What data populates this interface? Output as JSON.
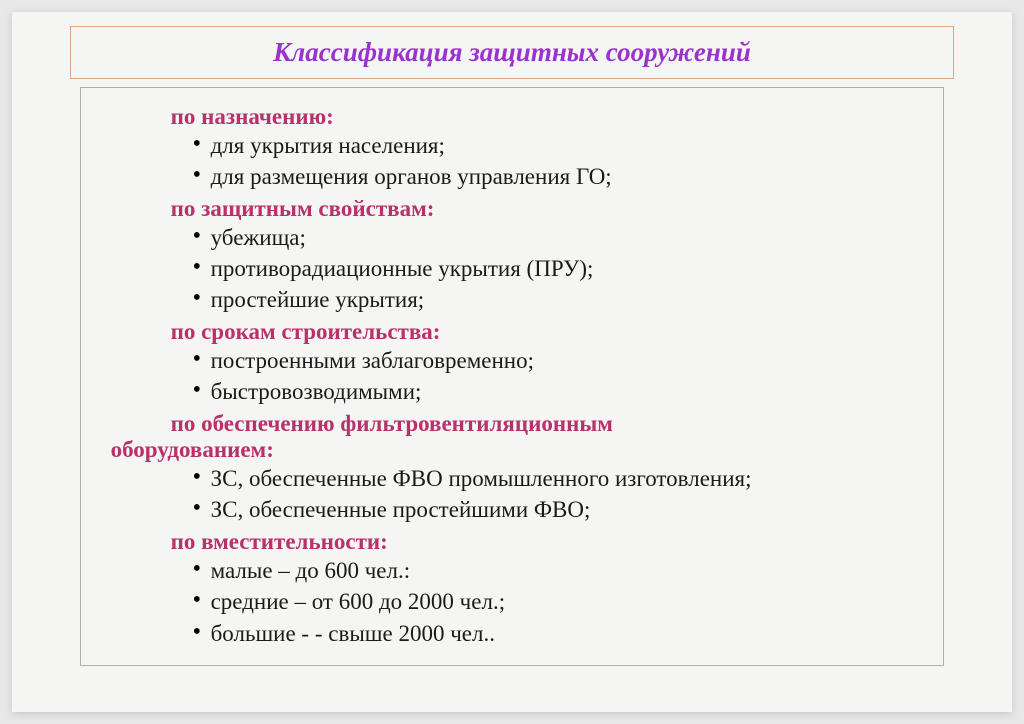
{
  "slide": {
    "background_color": "#f5f5f3",
    "page_background": "#e8e8e8",
    "title": {
      "text": "Классификация защитных сооружений",
      "color": "#9933cc",
      "border_color": "#d9a88a",
      "font_size": 27,
      "font_weight": "bold",
      "font_style": "italic"
    },
    "content": {
      "border_color": "#b0b0b0",
      "header_color": "#b8316a",
      "item_color": "#1a1a1a",
      "font_size": 23,
      "categories": [
        {
          "header": "по назначению:",
          "items": [
            "для укрытия населения;",
            "для размещения органов управления ГО;"
          ]
        },
        {
          "header": "по защитным свойствам:",
          "items": [
            "убежища;",
            "противорадиационные укрытия (ПРУ);",
            "простейшие укрытия;"
          ]
        },
        {
          "header": "по срокам строительства:",
          "items": [
            " построенными заблаговременно;",
            " быстровозводимыми;"
          ]
        },
        {
          "header": "по обеспечению фильтровентиляционным",
          "header_cont": "оборудованием:",
          "items": [
            "ЗС, обеспеченные ФВО промышленного изготовления;",
            "ЗС, обеспеченные простейшими ФВО;"
          ]
        },
        {
          "header": "по вместительности:",
          "items": [
            "малые – до 600 чел.:",
            "средние – от 600 до 2000 чел.;",
            "большие - - свыше 2000 чел.."
          ]
        }
      ]
    }
  }
}
